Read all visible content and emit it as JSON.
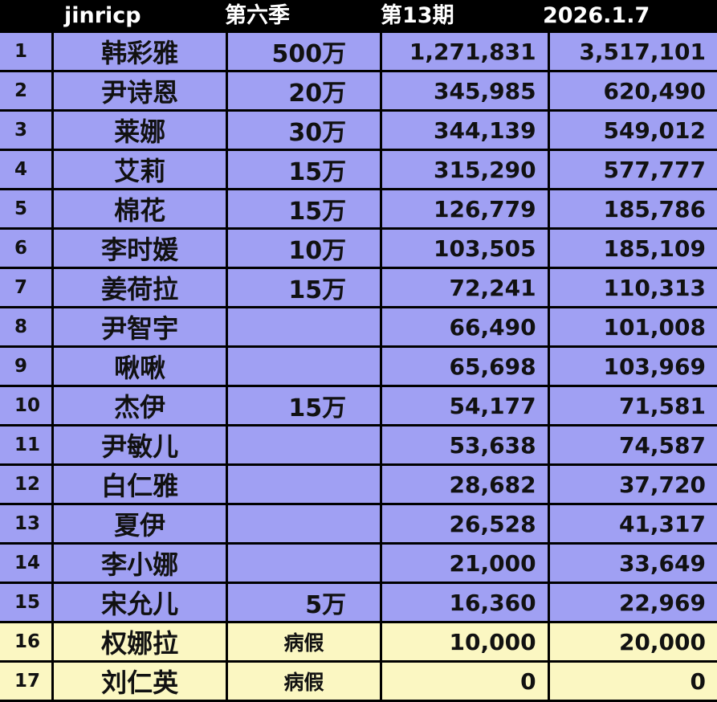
{
  "header": {
    "brand": "jinricp",
    "season": "第六季",
    "period": "第13期",
    "date": "2026.1.7"
  },
  "colors": {
    "row_blue": "#a0a0f3",
    "row_yellow": "#fbf7c2",
    "header_bg": "#000000",
    "header_text": "#ffffff"
  },
  "rows": [
    {
      "rank": "1",
      "name": "韩彩雅",
      "prize": "500万",
      "value1": "1,271,831",
      "value2": "3,517,101",
      "status": "normal"
    },
    {
      "rank": "2",
      "name": "尹诗恩",
      "prize": "20万",
      "value1": "345,985",
      "value2": "620,490",
      "status": "normal"
    },
    {
      "rank": "3",
      "name": "莱娜",
      "prize": "30万",
      "value1": "344,139",
      "value2": "549,012",
      "status": "normal"
    },
    {
      "rank": "4",
      "name": "艾莉",
      "prize": "15万",
      "value1": "315,290",
      "value2": "577,777",
      "status": "normal"
    },
    {
      "rank": "5",
      "name": "棉花",
      "prize": "15万",
      "value1": "126,779",
      "value2": "185,786",
      "status": "normal"
    },
    {
      "rank": "6",
      "name": "李时媛",
      "prize": "10万",
      "value1": "103,505",
      "value2": "185,109",
      "status": "normal"
    },
    {
      "rank": "7",
      "name": "姜荷拉",
      "prize": "15万",
      "value1": "72,241",
      "value2": "110,313",
      "status": "normal"
    },
    {
      "rank": "8",
      "name": "尹智宇",
      "prize": "",
      "value1": "66,490",
      "value2": "101,008",
      "status": "normal"
    },
    {
      "rank": "9",
      "name": "啾啾",
      "prize": "",
      "value1": "65,698",
      "value2": "103,969",
      "status": "normal"
    },
    {
      "rank": "10",
      "name": "杰伊",
      "prize": "15万",
      "value1": "54,177",
      "value2": "71,581",
      "status": "normal"
    },
    {
      "rank": "11",
      "name": "尹敏儿",
      "prize": "",
      "value1": "53,638",
      "value2": "74,587",
      "status": "normal"
    },
    {
      "rank": "12",
      "name": "白仁雅",
      "prize": "",
      "value1": "28,682",
      "value2": "37,720",
      "status": "normal"
    },
    {
      "rank": "13",
      "name": "夏伊",
      "prize": "",
      "value1": "26,528",
      "value2": "41,317",
      "status": "normal"
    },
    {
      "rank": "14",
      "name": "李小娜",
      "prize": "",
      "value1": "21,000",
      "value2": "33,649",
      "status": "normal"
    },
    {
      "rank": "15",
      "name": "宋允儿",
      "prize": "5万",
      "value1": "16,360",
      "value2": "22,969",
      "status": "normal"
    },
    {
      "rank": "16",
      "name": "权娜拉",
      "prize": "病假",
      "value1": "10,000",
      "value2": "20,000",
      "status": "sick"
    },
    {
      "rank": "17",
      "name": "刘仁英",
      "prize": "病假",
      "value1": "0",
      "value2": "0",
      "status": "sick"
    }
  ]
}
